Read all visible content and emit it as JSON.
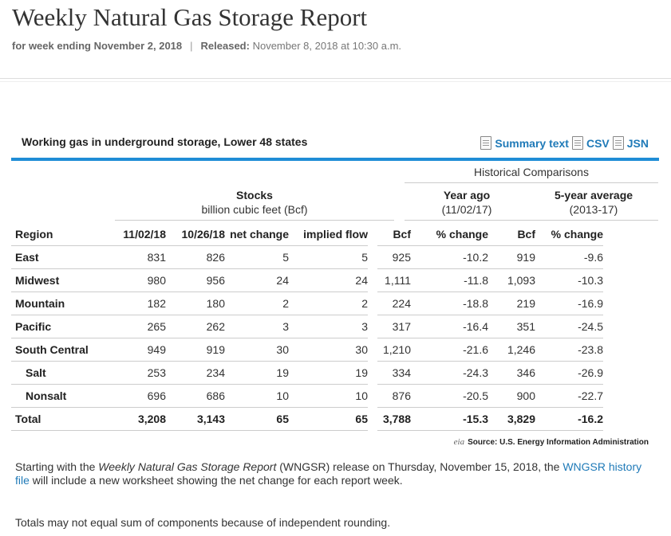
{
  "header": {
    "title": "Weekly Natural Gas Storage Report",
    "week_label": "for week ending November 2, 2018",
    "released_label": "Released:",
    "released_value": "November 8, 2018 at 10:30 a.m.",
    "separator": "|"
  },
  "table_section": {
    "title": "Working gas in underground storage, Lower 48 states",
    "links": [
      {
        "label": "Summary text",
        "icon": "document-icon"
      },
      {
        "label": "CSV",
        "icon": "document-icon"
      },
      {
        "label": "JSN",
        "icon": "document-icon"
      }
    ],
    "historical_label": "Historical Comparisons",
    "groups": {
      "stocks": {
        "title": "Stocks",
        "sub": "billion cubic feet (Bcf)"
      },
      "year_ago": {
        "title": "Year ago",
        "sub": "(11/02/17)"
      },
      "five_year": {
        "title": "5-year average",
        "sub": "(2013-17)"
      }
    },
    "columns": [
      "Region",
      "11/02/18",
      "10/26/18",
      "net change",
      "implied flow",
      "Bcf",
      "% change",
      "Bcf",
      "% change"
    ],
    "rows": [
      {
        "region": "East",
        "c1": "831",
        "c2": "826",
        "net": "5",
        "flow": "5",
        "ya_bcf": "925",
        "ya_pct": "-10.2",
        "fy_bcf": "919",
        "fy_pct": "-9.6"
      },
      {
        "region": "Midwest",
        "c1": "980",
        "c2": "956",
        "net": "24",
        "flow": "24",
        "ya_bcf": "1,111",
        "ya_pct": "-11.8",
        "fy_bcf": "1,093",
        "fy_pct": "-10.3"
      },
      {
        "region": "Mountain",
        "c1": "182",
        "c2": "180",
        "net": "2",
        "flow": "2",
        "ya_bcf": "224",
        "ya_pct": "-18.8",
        "fy_bcf": "219",
        "fy_pct": "-16.9"
      },
      {
        "region": "Pacific",
        "c1": "265",
        "c2": "262",
        "net": "3",
        "flow": "3",
        "ya_bcf": "317",
        "ya_pct": "-16.4",
        "fy_bcf": "351",
        "fy_pct": "-24.5"
      },
      {
        "region": "South Central",
        "c1": "949",
        "c2": "919",
        "net": "30",
        "flow": "30",
        "ya_bcf": "1,210",
        "ya_pct": "-21.6",
        "fy_bcf": "1,246",
        "fy_pct": "-23.8"
      },
      {
        "region": "Salt",
        "c1": "253",
        "c2": "234",
        "net": "19",
        "flow": "19",
        "ya_bcf": "334",
        "ya_pct": "-24.3",
        "fy_bcf": "346",
        "fy_pct": "-26.9"
      },
      {
        "region": "Nonsalt",
        "c1": "696",
        "c2": "686",
        "net": "10",
        "flow": "10",
        "ya_bcf": "876",
        "ya_pct": "-20.5",
        "fy_bcf": "900",
        "fy_pct": "-22.7"
      },
      {
        "region": "Total",
        "c1": "3,208",
        "c2": "3,143",
        "net": "65",
        "flow": "65",
        "ya_bcf": "3,788",
        "ya_pct": "-15.3",
        "fy_bcf": "3,829",
        "fy_pct": "-16.2"
      }
    ],
    "source_logo": "eia",
    "source_text": "Source:  U.S. Energy Information Administration"
  },
  "notes": {
    "note1_pre": "Starting with the ",
    "note1_italic": "Weekly Natural Gas Storage Report",
    "note1_mid": " (WNGSR) release on Thursday, November 15, 2018, the ",
    "note1_link": "WNGSR history file",
    "note1_post": " will include a new worksheet showing the net change for each report week.",
    "note2": "Totals may not equal sum of components because of independent rounding."
  },
  "colors": {
    "accent": "#1f8dd6",
    "link": "#1f7ab8"
  }
}
